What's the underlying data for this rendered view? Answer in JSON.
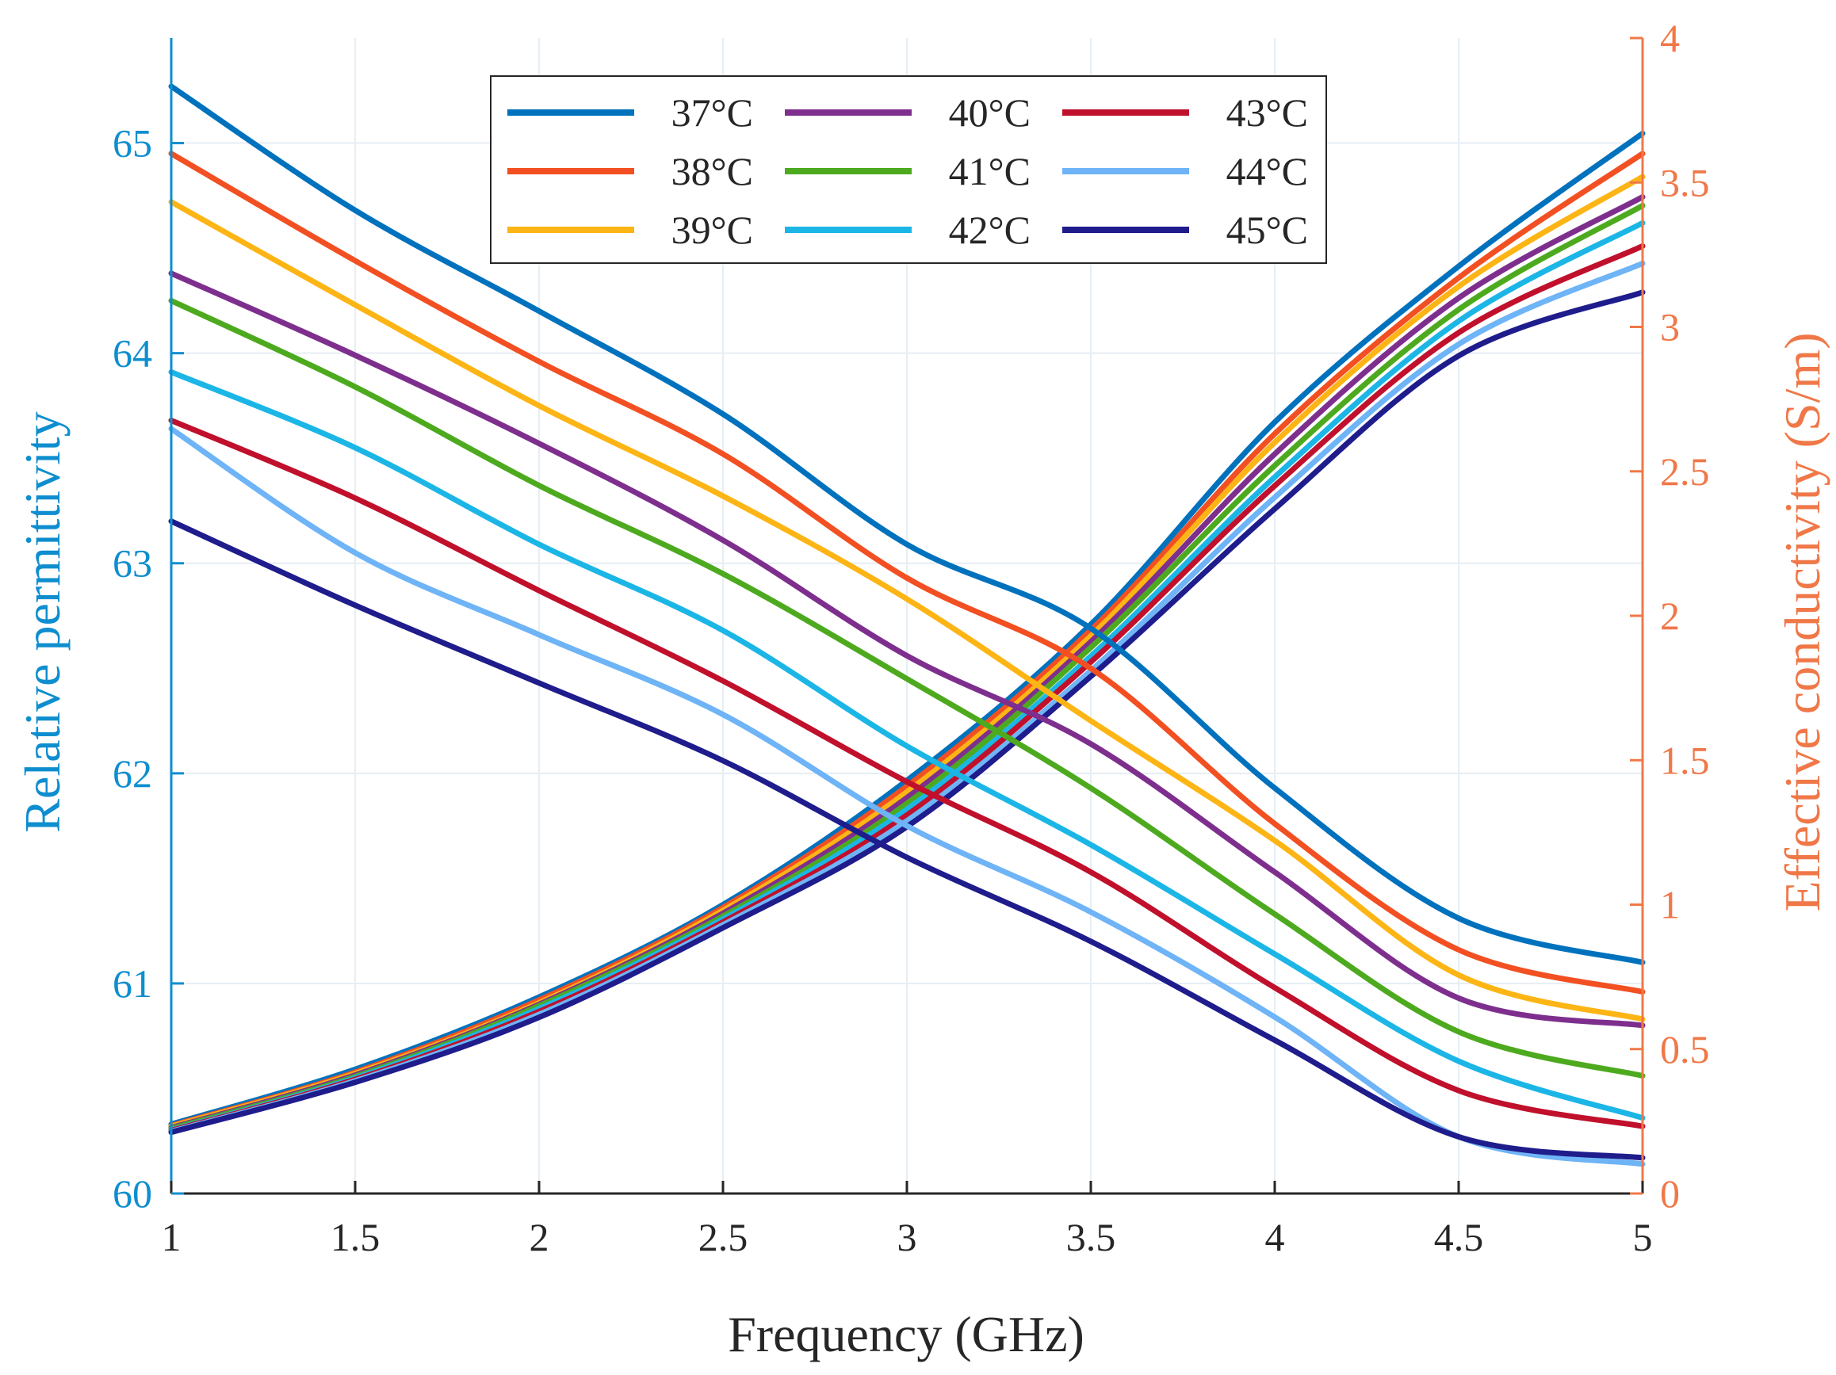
{
  "chart_data": {
    "type": "line",
    "xlabel": "Frequency (GHz)",
    "ylabel_left": "Relative permittivity",
    "ylabel_right": "Effective conductivity (S/m)",
    "xlim": [
      1,
      5
    ],
    "ylim_left": [
      60,
      65.5
    ],
    "ylim_right": [
      0,
      4
    ],
    "x_ticks": [
      1,
      1.5,
      2,
      2.5,
      3,
      3.5,
      4,
      4.5,
      5
    ],
    "x_tick_labels": [
      "1",
      "1.5",
      "2",
      "2.5",
      "3",
      "3.5",
      "4",
      "4.5",
      "5"
    ],
    "y_left_ticks": [
      60,
      61,
      62,
      63,
      64,
      65
    ],
    "y_left_tick_labels": [
      "60",
      "61",
      "62",
      "63",
      "64",
      "65"
    ],
    "y_right_ticks": [
      0,
      0.5,
      1,
      1.5,
      2,
      2.5,
      3,
      3.5,
      4
    ],
    "y_right_tick_labels": [
      "0",
      "0.5",
      "1",
      "1.5",
      "2",
      "2.5",
      "3",
      "3.5",
      "4"
    ],
    "grid": true,
    "legend_position": "top",
    "x": [
      1,
      1.5,
      2,
      2.5,
      3,
      3.5,
      4,
      4.5,
      5
    ],
    "series": [
      {
        "name": "37°C",
        "color": "#0072bd",
        "permittivity": [
          65.27,
          64.68,
          64.2,
          63.71,
          63.09,
          62.69,
          61.93,
          61.31,
          61.1
        ],
        "conductivity": [
          0.24,
          0.43,
          0.68,
          1.0,
          1.43,
          1.97,
          2.67,
          3.21,
          3.67
        ]
      },
      {
        "name": "38°C",
        "color": "#f25022",
        "permittivity": [
          64.95,
          64.44,
          63.96,
          63.52,
          62.93,
          62.5,
          61.76,
          61.16,
          60.96
        ],
        "conductivity": [
          0.235,
          0.42,
          0.67,
          0.99,
          1.41,
          1.95,
          2.63,
          3.17,
          3.6
        ]
      },
      {
        "name": "39°C",
        "color": "#fdb515",
        "permittivity": [
          64.72,
          64.23,
          63.75,
          63.32,
          62.83,
          62.25,
          61.68,
          61.04,
          60.83
        ],
        "conductivity": [
          0.232,
          0.415,
          0.66,
          0.98,
          1.39,
          1.93,
          2.6,
          3.14,
          3.52
        ]
      },
      {
        "name": "40°C",
        "color": "#7e2f8e",
        "permittivity": [
          64.38,
          63.99,
          63.57,
          63.11,
          62.56,
          62.14,
          61.53,
          60.93,
          60.8
        ],
        "conductivity": [
          0.228,
          0.41,
          0.655,
          0.97,
          1.37,
          1.91,
          2.56,
          3.1,
          3.45
        ]
      },
      {
        "name": "41°C",
        "color": "#4daa1f",
        "permittivity": [
          64.25,
          63.84,
          63.37,
          62.95,
          62.45,
          61.93,
          61.33,
          60.77,
          60.56
        ],
        "conductivity": [
          0.225,
          0.405,
          0.65,
          0.96,
          1.35,
          1.89,
          2.52,
          3.06,
          3.42
        ]
      },
      {
        "name": "42°C",
        "color": "#1cb6e6",
        "permittivity": [
          63.91,
          63.55,
          63.09,
          62.68,
          62.13,
          61.66,
          61.14,
          60.63,
          60.36
        ],
        "conductivity": [
          0.22,
          0.4,
          0.64,
          0.95,
          1.33,
          1.86,
          2.48,
          3.02,
          3.36
        ]
      },
      {
        "name": "43°C",
        "color": "#c0102c",
        "permittivity": [
          63.68,
          63.31,
          62.87,
          62.44,
          61.96,
          61.53,
          60.98,
          60.49,
          60.32
        ],
        "conductivity": [
          0.218,
          0.395,
          0.63,
          0.94,
          1.31,
          1.84,
          2.45,
          2.98,
          3.28
        ]
      },
      {
        "name": "44°C",
        "color": "#6eb4f6",
        "permittivity": [
          63.64,
          63.05,
          62.66,
          62.28,
          61.75,
          61.34,
          60.84,
          60.27,
          60.14
        ],
        "conductivity": [
          0.215,
          0.39,
          0.62,
          0.93,
          1.29,
          1.81,
          2.41,
          2.94,
          3.22
        ]
      },
      {
        "name": "45°C",
        "color": "#1f1c8c",
        "permittivity": [
          63.2,
          62.8,
          62.43,
          62.06,
          61.6,
          61.2,
          60.73,
          60.27,
          60.17
        ],
        "conductivity": [
          0.212,
          0.385,
          0.61,
          0.92,
          1.27,
          1.79,
          2.37,
          2.9,
          3.12
        ]
      }
    ]
  }
}
